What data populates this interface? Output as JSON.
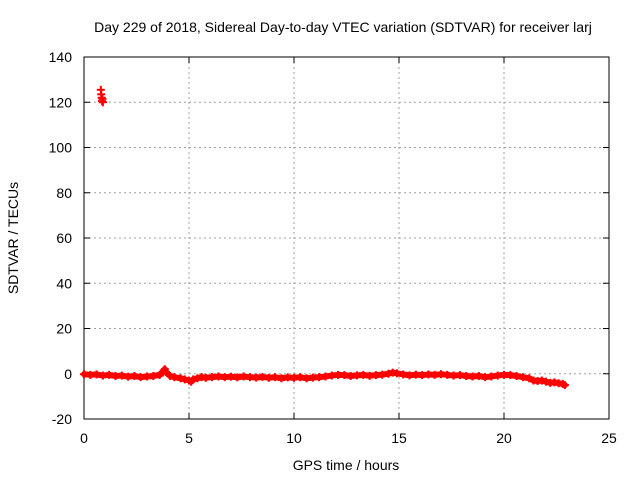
{
  "chart_data": {
    "type": "scatter",
    "title": "Day 229 of 2018, Sidereal Day-to-day VTEC variation (SDTVAR) for receiver larj",
    "xlabel": "GPS time / hours",
    "ylabel": "SDTVAR / TECUs",
    "xlim": [
      0,
      25
    ],
    "ylim": [
      -20,
      140
    ],
    "xticks": [
      0,
      5,
      10,
      15,
      20,
      25
    ],
    "yticks": [
      -20,
      0,
      20,
      40,
      60,
      80,
      100,
      120,
      140
    ],
    "grid": true,
    "marker_color": "#ff0000",
    "series": [
      {
        "name": "SDTVAR",
        "points": [
          [
            0.8,
            125.5
          ],
          [
            0.82,
            123.5
          ],
          [
            0.84,
            122.0
          ],
          [
            0.86,
            120.5
          ],
          [
            0.88,
            121.5
          ],
          [
            0.9,
            120.0
          ],
          [
            0.0,
            -0.2
          ],
          [
            0.3,
            -0.5
          ],
          [
            0.6,
            -0.3
          ],
          [
            0.9,
            -0.8
          ],
          [
            1.2,
            -0.5
          ],
          [
            1.5,
            -1.0
          ],
          [
            1.8,
            -0.8
          ],
          [
            2.1,
            -1.3
          ],
          [
            2.4,
            -1.0
          ],
          [
            2.7,
            -1.5
          ],
          [
            3.0,
            -1.2
          ],
          [
            3.3,
            -1.0
          ],
          [
            3.6,
            -0.5
          ],
          [
            3.75,
            0.5
          ],
          [
            3.8,
            1.5
          ],
          [
            3.85,
            2.0
          ],
          [
            3.9,
            0.8
          ],
          [
            4.1,
            -1.0
          ],
          [
            4.3,
            -1.5
          ],
          [
            4.6,
            -2.0
          ],
          [
            4.8,
            -2.5
          ],
          [
            5.0,
            -3.0
          ],
          [
            5.1,
            -3.5
          ],
          [
            5.2,
            -2.5
          ],
          [
            5.4,
            -2.0
          ],
          [
            5.6,
            -1.5
          ],
          [
            5.8,
            -1.8
          ],
          [
            6.1,
            -1.5
          ],
          [
            6.4,
            -1.2
          ],
          [
            6.7,
            -1.5
          ],
          [
            7.0,
            -1.3
          ],
          [
            7.3,
            -1.6
          ],
          [
            7.6,
            -1.2
          ],
          [
            7.9,
            -1.5
          ],
          [
            8.2,
            -1.7
          ],
          [
            8.5,
            -1.4
          ],
          [
            8.8,
            -1.8
          ],
          [
            9.1,
            -1.5
          ],
          [
            9.4,
            -2.0
          ],
          [
            9.7,
            -1.6
          ],
          [
            10.0,
            -1.8
          ],
          [
            10.3,
            -1.5
          ],
          [
            10.6,
            -2.0
          ],
          [
            10.9,
            -1.7
          ],
          [
            11.2,
            -1.5
          ],
          [
            11.5,
            -1.2
          ],
          [
            11.8,
            -0.8
          ],
          [
            12.1,
            -0.5
          ],
          [
            12.4,
            -0.6
          ],
          [
            12.7,
            -1.0
          ],
          [
            13.0,
            -0.7
          ],
          [
            13.3,
            -0.5
          ],
          [
            13.6,
            -0.9
          ],
          [
            13.9,
            -0.6
          ],
          [
            14.2,
            -0.4
          ],
          [
            14.5,
            0.0
          ],
          [
            14.7,
            0.5
          ],
          [
            14.9,
            0.2
          ],
          [
            15.2,
            -0.3
          ],
          [
            15.5,
            -0.7
          ],
          [
            15.8,
            -0.4
          ],
          [
            16.1,
            -0.6
          ],
          [
            16.4,
            -0.3
          ],
          [
            16.7,
            -0.5
          ],
          [
            17.0,
            -0.2
          ],
          [
            17.3,
            -0.5
          ],
          [
            17.6,
            -0.8
          ],
          [
            17.9,
            -0.6
          ],
          [
            18.2,
            -1.0
          ],
          [
            18.5,
            -1.2
          ],
          [
            18.8,
            -1.0
          ],
          [
            19.1,
            -1.5
          ],
          [
            19.4,
            -1.2
          ],
          [
            19.7,
            -0.8
          ],
          [
            20.0,
            -0.5
          ],
          [
            20.3,
            -0.6
          ],
          [
            20.6,
            -1.0
          ],
          [
            20.9,
            -1.5
          ],
          [
            21.2,
            -2.0
          ],
          [
            21.4,
            -3.0
          ],
          [
            21.6,
            -3.2
          ],
          [
            21.8,
            -3.0
          ],
          [
            22.0,
            -3.5
          ],
          [
            22.2,
            -4.0
          ],
          [
            22.4,
            -3.8
          ],
          [
            22.6,
            -4.2
          ],
          [
            22.8,
            -4.5
          ],
          [
            22.9,
            -5.0
          ]
        ]
      }
    ]
  }
}
